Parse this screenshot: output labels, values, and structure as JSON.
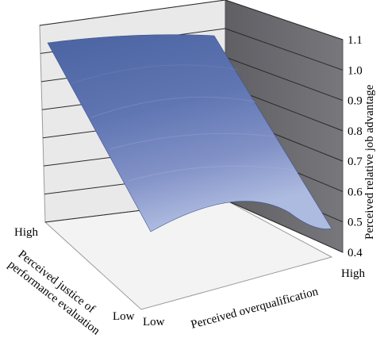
{
  "chart_data": {
    "type": "surface",
    "title": "",
    "zlabel": "Perceived relative job advantage",
    "xlabel": "Perceived overqualification",
    "ylabel": "Perceived justice of performance evaluation",
    "x_ticks": [
      "Low",
      "High"
    ],
    "y_ticks": [
      "Low",
      "High"
    ],
    "z_ticks": [
      "0.4",
      "0.5",
      "0.6",
      "0.7",
      "0.8",
      "0.9",
      "1.0",
      "1.1"
    ],
    "zlim": [
      0.4,
      1.1
    ],
    "grid": true,
    "colors": {
      "surface_high": "#4e68a6",
      "surface_low": "#a7b4d9",
      "right_wall": "#6b6b70",
      "back_wall": "#e8e8e8",
      "floor": "#f2f2f2"
    },
    "surface_corners": [
      {
        "overqualification": "Low",
        "justice": "High",
        "value": 1.05
      },
      {
        "overqualification": "High",
        "justice": "High",
        "value": 1.02
      },
      {
        "overqualification": "Low",
        "justice": "Low",
        "value": 0.45
      },
      {
        "overqualification": "High",
        "justice": "Low",
        "value": 0.52
      }
    ]
  }
}
